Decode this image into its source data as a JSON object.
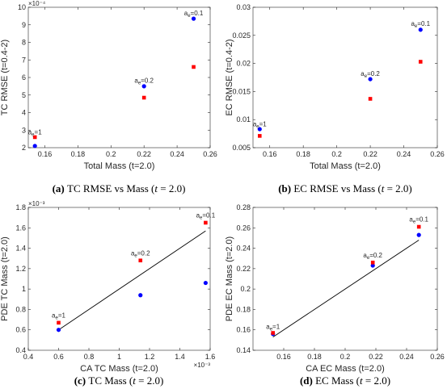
{
  "chart_data": [
    {
      "type": "scatter",
      "id": "a",
      "caption": {
        "label": "(a)",
        "text": "TC RMSE vs Mass (",
        "var": "t",
        "tail": " = 2.0)"
      },
      "xlabel": "Total Mass (t=2.0)",
      "ylabel": "TC RMSE (t=0.4-2)",
      "xlim": [
        0.15,
        0.26
      ],
      "ylim": [
        2,
        10
      ],
      "x_ticks": [
        "0.16",
        "0.18",
        "0.2",
        "0.22",
        "0.24",
        "0.26"
      ],
      "y_ticks": [
        "2",
        "3",
        "4",
        "5",
        "6",
        "7",
        "8",
        "9",
        "10"
      ],
      "y_exponent": "×10⁻⁴",
      "series": [
        {
          "marker": "circle",
          "color": "#0000ff",
          "x": [
            0.154,
            0.22,
            0.25
          ],
          "y": [
            2.1,
            5.5,
            9.35
          ]
        },
        {
          "marker": "square",
          "color": "#ff0000",
          "x": [
            0.154,
            0.22,
            0.25
          ],
          "y": [
            2.6,
            4.85,
            6.6
          ]
        }
      ],
      "annotations": [
        {
          "base": "a",
          "sub": "e",
          "tail": "=1",
          "x": 0.154,
          "y": 2.75
        },
        {
          "base": "a",
          "sub": "e",
          "tail": "=0.2",
          "x": 0.22,
          "y": 5.7
        },
        {
          "base": "a",
          "sub": "e",
          "tail": "=0.1",
          "x": 0.25,
          "y": 9.55
        }
      ]
    },
    {
      "type": "scatter",
      "id": "b",
      "caption": {
        "label": "(b)",
        "text": "EC RMSE vs Mass (",
        "var": "t",
        "tail": " = 2.0)"
      },
      "xlabel": "Total Mass (t=2.0)",
      "ylabel": "EC RMSE (t=0.4-2)",
      "xlim": [
        0.15,
        0.26
      ],
      "ylim": [
        0.005,
        0.03
      ],
      "x_ticks": [
        "0.16",
        "0.18",
        "0.2",
        "0.22",
        "0.24",
        "0.26"
      ],
      "y_ticks": [
        "0.005",
        "0.01",
        "0.015",
        "0.02",
        "0.025",
        "0.03"
      ],
      "y_exponent": "",
      "series": [
        {
          "marker": "circle",
          "color": "#0000ff",
          "x": [
            0.154,
            0.22,
            0.25
          ],
          "y": [
            0.0083,
            0.0172,
            0.026
          ]
        },
        {
          "marker": "square",
          "color": "#ff0000",
          "x": [
            0.154,
            0.22,
            0.25
          ],
          "y": [
            0.0071,
            0.0137,
            0.0203
          ]
        }
      ],
      "annotations": [
        {
          "base": "a",
          "sub": "e",
          "tail": "=1",
          "x": 0.154,
          "y": 0.0088
        },
        {
          "base": "a",
          "sub": "e",
          "tail": "=0.2",
          "x": 0.22,
          "y": 0.0178
        },
        {
          "base": "a",
          "sub": "e",
          "tail": "=0.1",
          "x": 0.25,
          "y": 0.0267
        }
      ]
    },
    {
      "type": "scatter",
      "id": "c",
      "caption": {
        "label": "(c)",
        "text": "TC Mass (",
        "var": "t",
        "tail": " = 2.0)"
      },
      "xlabel": "CA TC Mass (t=2.0)",
      "ylabel": "PDE TC Mass (t=2.0)",
      "xlim": [
        0.4,
        1.6
      ],
      "ylim": [
        0.4,
        1.8
      ],
      "x_ticks": [
        "0.4",
        "0.6",
        "0.8",
        "1",
        "1.2",
        "1.4",
        "1.6"
      ],
      "y_ticks": [
        "0.4",
        "0.6",
        "0.8",
        "1",
        "1.2",
        "1.4",
        "1.6",
        "1.8"
      ],
      "y_exponent": "×10⁻³",
      "x_exponent": "×10⁻³",
      "fit_line": {
        "x": [
          0.6,
          1.57
        ],
        "y": [
          0.6,
          1.57
        ]
      },
      "series": [
        {
          "marker": "circle",
          "color": "#0000ff",
          "x": [
            0.6,
            1.14,
            1.57
          ],
          "y": [
            0.6,
            0.94,
            1.06
          ]
        },
        {
          "marker": "square",
          "color": "#ff0000",
          "x": [
            0.6,
            1.14,
            1.57
          ],
          "y": [
            0.67,
            1.28,
            1.65
          ]
        }
      ],
      "annotations": [
        {
          "base": "a",
          "sub": "e",
          "tail": "=1",
          "x": 0.6,
          "y": 0.72
        },
        {
          "base": "a",
          "sub": "e",
          "tail": "=0.2",
          "x": 1.14,
          "y": 1.33
        },
        {
          "base": "a",
          "sub": "e",
          "tail": "=0.1",
          "x": 1.57,
          "y": 1.7
        }
      ]
    },
    {
      "type": "scatter",
      "id": "d",
      "caption": {
        "label": "(d)",
        "text": "EC Mass (",
        "var": "t",
        "tail": " = 2.0)"
      },
      "xlabel": "CA EC Mass (t=2.0)",
      "ylabel": "PDE EC Mass (t=2.0)",
      "xlim": [
        0.14,
        0.26
      ],
      "ylim": [
        0.14,
        0.28
      ],
      "x_ticks": [
        "0.16",
        "0.18",
        "0.2",
        "0.22",
        "0.24",
        "0.26"
      ],
      "y_ticks": [
        "0.14",
        "0.16",
        "0.18",
        "0.2",
        "0.22",
        "0.24",
        "0.26",
        "0.28"
      ],
      "y_exponent": "",
      "fit_line": {
        "x": [
          0.153,
          0.248
        ],
        "y": [
          0.153,
          0.248
        ]
      },
      "series": [
        {
          "marker": "circle",
          "color": "#0000ff",
          "x": [
            0.153,
            0.218,
            0.248
          ],
          "y": [
            0.156,
            0.223,
            0.253
          ]
        },
        {
          "marker": "square",
          "color": "#ff0000",
          "x": [
            0.153,
            0.218,
            0.248
          ],
          "y": [
            0.157,
            0.226,
            0.261
          ]
        }
      ],
      "annotations": [
        {
          "base": "a",
          "sub": "e",
          "tail": "=1",
          "x": 0.153,
          "y": 0.161
        },
        {
          "base": "a",
          "sub": "e",
          "tail": "=0.2",
          "x": 0.218,
          "y": 0.231
        },
        {
          "base": "a",
          "sub": "e",
          "tail": "=0.1",
          "x": 0.248,
          "y": 0.266
        }
      ]
    }
  ]
}
